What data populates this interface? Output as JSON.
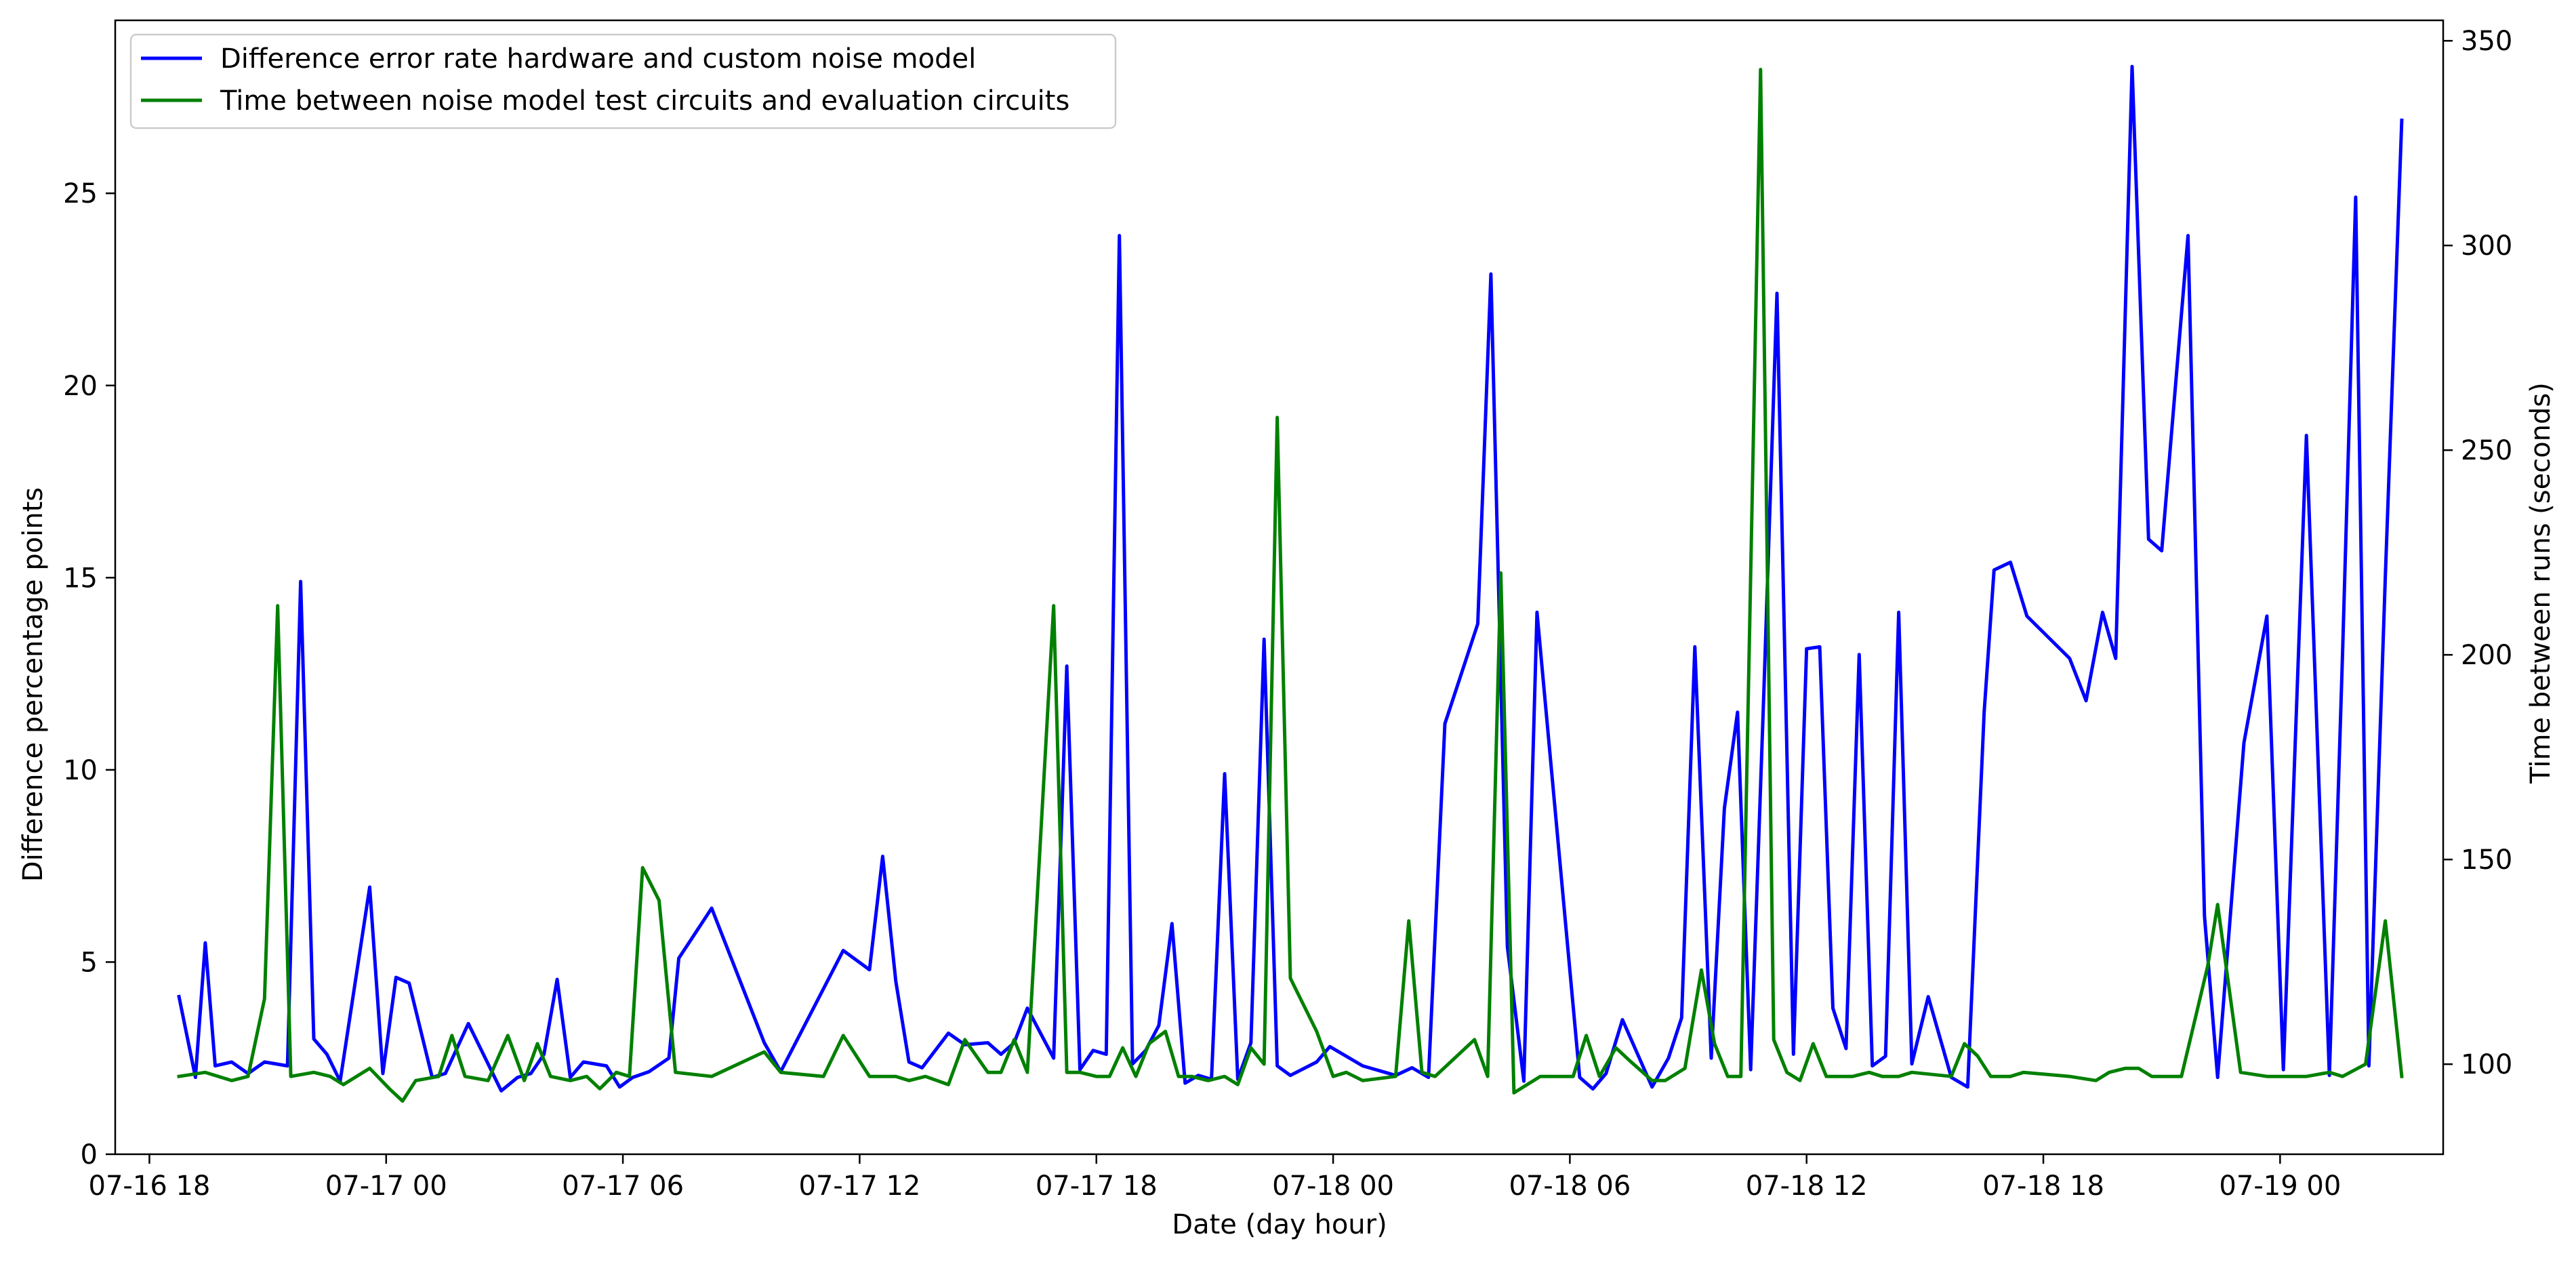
{
  "chart_data": {
    "type": "line",
    "title": "",
    "xlabel": "Date (day hour)",
    "ylabel": "Difference percentage points",
    "ylabel_right": "Time between runs (seconds)",
    "x_ticks": [
      "07-16 18",
      "07-17 00",
      "07-17 06",
      "07-17 12",
      "07-17 18",
      "07-18 00",
      "07-18 06",
      "07-18 12",
      "07-18 18",
      "07-19 00"
    ],
    "xlim": [
      "2024-07-16T17:08",
      "2024-07-19T04:08"
    ],
    "ylim": [
      0,
      29.5
    ],
    "ylim_right": [
      78,
      355
    ],
    "y_ticks": [
      0,
      5,
      10,
      15,
      20,
      25
    ],
    "y_ticks_right": [
      100,
      150,
      200,
      250,
      300,
      350
    ],
    "legend_position": "top-left",
    "grid": false,
    "series": [
      {
        "name": "Difference error rate hardware and custom noise model",
        "axis": "left",
        "color": "#0000ff",
        "points": [
          [
            "2024-07-16T18:45",
            4.1
          ],
          [
            "2024-07-16T19:10",
            2.0
          ],
          [
            "2024-07-16T19:25",
            5.5
          ],
          [
            "2024-07-16T19:40",
            2.3
          ],
          [
            "2024-07-16T20:05",
            2.4
          ],
          [
            "2024-07-16T20:30",
            2.1
          ],
          [
            "2024-07-16T20:55",
            2.4
          ],
          [
            "2024-07-16T21:30",
            2.3
          ],
          [
            "2024-07-16T21:50",
            14.9
          ],
          [
            "2024-07-16T22:10",
            3.0
          ],
          [
            "2024-07-16T22:30",
            2.6
          ],
          [
            "2024-07-16T22:50",
            1.9
          ],
          [
            "2024-07-16T23:35",
            6.95
          ],
          [
            "2024-07-16T23:55",
            2.1
          ],
          [
            "2024-07-17T00:15",
            4.6
          ],
          [
            "2024-07-17T00:35",
            4.45
          ],
          [
            "2024-07-17T01:10",
            2.0
          ],
          [
            "2024-07-17T01:30",
            2.1
          ],
          [
            "2024-07-17T02:05",
            3.4
          ],
          [
            "2024-07-17T02:55",
            1.65
          ],
          [
            "2024-07-17T03:20",
            2.0
          ],
          [
            "2024-07-17T03:40",
            2.1
          ],
          [
            "2024-07-17T04:00",
            2.6
          ],
          [
            "2024-07-17T04:20",
            4.55
          ],
          [
            "2024-07-17T04:40",
            2.0
          ],
          [
            "2024-07-17T05:00",
            2.4
          ],
          [
            "2024-07-17T05:35",
            2.3
          ],
          [
            "2024-07-17T05:55",
            1.75
          ],
          [
            "2024-07-17T06:15",
            2.0
          ],
          [
            "2024-07-17T06:40",
            2.15
          ],
          [
            "2024-07-17T07:10",
            2.5
          ],
          [
            "2024-07-17T07:25",
            5.1
          ],
          [
            "2024-07-17T08:15",
            6.4
          ],
          [
            "2024-07-17T09:35",
            2.9
          ],
          [
            "2024-07-17T10:00",
            2.15
          ],
          [
            "2024-07-17T11:35",
            5.3
          ],
          [
            "2024-07-17T12:15",
            4.8
          ],
          [
            "2024-07-17T12:35",
            7.75
          ],
          [
            "2024-07-17T12:55",
            4.5
          ],
          [
            "2024-07-17T13:15",
            2.4
          ],
          [
            "2024-07-17T13:35",
            2.25
          ],
          [
            "2024-07-17T14:15",
            3.15
          ],
          [
            "2024-07-17T14:40",
            2.85
          ],
          [
            "2024-07-17T15:15",
            2.9
          ],
          [
            "2024-07-17T15:35",
            2.6
          ],
          [
            "2024-07-17T15:55",
            2.9
          ],
          [
            "2024-07-17T16:15",
            3.8
          ],
          [
            "2024-07-17T16:55",
            2.5
          ],
          [
            "2024-07-17T17:15",
            12.7
          ],
          [
            "2024-07-17T17:35",
            2.2
          ],
          [
            "2024-07-17T17:55",
            2.7
          ],
          [
            "2024-07-17T18:15",
            2.6
          ],
          [
            "2024-07-17T18:35",
            23.9
          ],
          [
            "2024-07-17T18:55",
            2.35
          ],
          [
            "2024-07-17T19:15",
            2.7
          ],
          [
            "2024-07-17T19:35",
            3.35
          ],
          [
            "2024-07-17T19:55",
            6.0
          ],
          [
            "2024-07-17T20:15",
            1.85
          ],
          [
            "2024-07-17T20:35",
            2.05
          ],
          [
            "2024-07-17T20:55",
            1.95
          ],
          [
            "2024-07-17T21:15",
            9.9
          ],
          [
            "2024-07-17T21:35",
            1.95
          ],
          [
            "2024-07-17T21:55",
            2.9
          ],
          [
            "2024-07-17T22:15",
            13.4
          ],
          [
            "2024-07-17T22:35",
            2.3
          ],
          [
            "2024-07-17T22:55",
            2.05
          ],
          [
            "2024-07-17T23:35",
            2.4
          ],
          [
            "2024-07-17T23:55",
            2.8
          ],
          [
            "2024-07-18T00:45",
            2.3
          ],
          [
            "2024-07-18T01:35",
            2.05
          ],
          [
            "2024-07-18T02:00",
            2.25
          ],
          [
            "2024-07-18T02:25",
            2.0
          ],
          [
            "2024-07-18T02:50",
            11.2
          ],
          [
            "2024-07-18T03:40",
            13.8
          ],
          [
            "2024-07-18T04:00",
            22.9
          ],
          [
            "2024-07-18T04:25",
            5.4
          ],
          [
            "2024-07-18T04:50",
            1.9
          ],
          [
            "2024-07-18T05:10",
            14.1
          ],
          [
            "2024-07-18T06:15",
            2.0
          ],
          [
            "2024-07-18T06:35",
            1.7
          ],
          [
            "2024-07-18T06:55",
            2.1
          ],
          [
            "2024-07-18T07:20",
            3.5
          ],
          [
            "2024-07-18T08:05",
            1.75
          ],
          [
            "2024-07-18T08:30",
            2.5
          ],
          [
            "2024-07-18T08:50",
            3.55
          ],
          [
            "2024-07-18T09:10",
            13.2
          ],
          [
            "2024-07-18T09:35",
            2.5
          ],
          [
            "2024-07-18T09:55",
            9.0
          ],
          [
            "2024-07-18T10:15",
            11.5
          ],
          [
            "2024-07-18T10:35",
            2.2
          ],
          [
            "2024-07-18T10:55",
            12.0
          ],
          [
            "2024-07-18T11:15",
            22.4
          ],
          [
            "2024-07-18T11:40",
            2.6
          ],
          [
            "2024-07-18T12:00",
            13.15
          ],
          [
            "2024-07-18T12:20",
            13.2
          ],
          [
            "2024-07-18T12:40",
            3.8
          ],
          [
            "2024-07-18T13:00",
            2.75
          ],
          [
            "2024-07-18T13:20",
            13.0
          ],
          [
            "2024-07-18T13:40",
            2.3
          ],
          [
            "2024-07-18T14:00",
            2.55
          ],
          [
            "2024-07-18T14:20",
            14.1
          ],
          [
            "2024-07-18T14:40",
            2.35
          ],
          [
            "2024-07-18T15:05",
            4.1
          ],
          [
            "2024-07-18T15:40",
            2.0
          ],
          [
            "2024-07-18T16:05",
            1.75
          ],
          [
            "2024-07-18T16:30",
            11.5
          ],
          [
            "2024-07-18T16:45",
            15.2
          ],
          [
            "2024-07-18T17:10",
            15.4
          ],
          [
            "2024-07-18T17:35",
            14.0
          ],
          [
            "2024-07-18T18:40",
            12.9
          ],
          [
            "2024-07-18T19:05",
            11.8
          ],
          [
            "2024-07-18T19:30",
            14.1
          ],
          [
            "2024-07-18T19:50",
            12.9
          ],
          [
            "2024-07-18T20:15",
            28.3
          ],
          [
            "2024-07-18T20:40",
            16.0
          ],
          [
            "2024-07-18T21:00",
            15.7
          ],
          [
            "2024-07-18T21:40",
            23.9
          ],
          [
            "2024-07-18T22:05",
            6.2
          ],
          [
            "2024-07-18T22:25",
            2.0
          ],
          [
            "2024-07-18T23:05",
            10.7
          ],
          [
            "2024-07-18T23:40",
            14.0
          ],
          [
            "2024-07-19T00:05",
            2.2
          ],
          [
            "2024-07-19T00:40",
            18.7
          ],
          [
            "2024-07-19T01:15",
            2.05
          ],
          [
            "2024-07-19T01:35",
            13.0
          ],
          [
            "2024-07-19T01:55",
            24.9
          ],
          [
            "2024-07-19T02:15",
            2.3
          ],
          [
            "2024-07-19T02:40",
            15.0
          ],
          [
            "2024-07-19T03:05",
            26.9
          ]
        ]
      },
      {
        "name": "Time between noise model test circuits and evaluation circuits",
        "axis": "right",
        "color": "#008000",
        "points": [
          [
            "2024-07-16T18:45",
            97
          ],
          [
            "2024-07-16T19:25",
            98
          ],
          [
            "2024-07-16T20:05",
            96
          ],
          [
            "2024-07-16T20:30",
            97
          ],
          [
            "2024-07-16T20:55",
            116
          ],
          [
            "2024-07-16T21:15",
            212
          ],
          [
            "2024-07-16T21:35",
            97
          ],
          [
            "2024-07-16T22:10",
            98
          ],
          [
            "2024-07-16T22:35",
            97
          ],
          [
            "2024-07-16T22:55",
            95
          ],
          [
            "2024-07-16T23:35",
            99
          ],
          [
            "2024-07-17T00:05",
            94
          ],
          [
            "2024-07-17T00:25",
            91
          ],
          [
            "2024-07-17T00:45",
            96
          ],
          [
            "2024-07-17T01:20",
            97
          ],
          [
            "2024-07-17T01:40",
            107
          ],
          [
            "2024-07-17T02:00",
            97
          ],
          [
            "2024-07-17T02:35",
            96
          ],
          [
            "2024-07-17T03:05",
            107
          ],
          [
            "2024-07-17T03:30",
            96
          ],
          [
            "2024-07-17T03:50",
            105
          ],
          [
            "2024-07-17T04:10",
            97
          ],
          [
            "2024-07-17T04:40",
            96
          ],
          [
            "2024-07-17T05:05",
            97
          ],
          [
            "2024-07-17T05:25",
            94
          ],
          [
            "2024-07-17T05:50",
            98
          ],
          [
            "2024-07-17T06:10",
            97
          ],
          [
            "2024-07-17T06:30",
            148
          ],
          [
            "2024-07-17T06:55",
            140
          ],
          [
            "2024-07-17T07:20",
            98
          ],
          [
            "2024-07-17T08:15",
            97
          ],
          [
            "2024-07-17T09:35",
            103
          ],
          [
            "2024-07-17T10:00",
            98
          ],
          [
            "2024-07-17T11:05",
            97
          ],
          [
            "2024-07-17T11:35",
            107
          ],
          [
            "2024-07-17T12:15",
            97
          ],
          [
            "2024-07-17T12:55",
            97
          ],
          [
            "2024-07-17T13:15",
            96
          ],
          [
            "2024-07-17T13:40",
            97
          ],
          [
            "2024-07-17T14:15",
            95
          ],
          [
            "2024-07-17T14:40",
            106
          ],
          [
            "2024-07-17T15:15",
            98
          ],
          [
            "2024-07-17T15:35",
            98
          ],
          [
            "2024-07-17T15:55",
            106
          ],
          [
            "2024-07-17T16:15",
            98
          ],
          [
            "2024-07-17T16:55",
            212
          ],
          [
            "2024-07-17T17:15",
            98
          ],
          [
            "2024-07-17T17:35",
            98
          ],
          [
            "2024-07-17T18:00",
            97
          ],
          [
            "2024-07-17T18:20",
            97
          ],
          [
            "2024-07-17T18:40",
            104
          ],
          [
            "2024-07-17T19:00",
            97
          ],
          [
            "2024-07-17T19:20",
            105
          ],
          [
            "2024-07-17T19:45",
            108
          ],
          [
            "2024-07-17T20:05",
            97
          ],
          [
            "2024-07-17T20:25",
            97
          ],
          [
            "2024-07-17T20:50",
            96
          ],
          [
            "2024-07-17T21:15",
            97
          ],
          [
            "2024-07-17T21:35",
            95
          ],
          [
            "2024-07-17T21:55",
            104
          ],
          [
            "2024-07-17T22:15",
            100
          ],
          [
            "2024-07-17T22:35",
            258
          ],
          [
            "2024-07-17T22:55",
            121
          ],
          [
            "2024-07-17T23:35",
            108
          ],
          [
            "2024-07-18T00:00",
            97
          ],
          [
            "2024-07-18T00:20",
            98
          ],
          [
            "2024-07-18T00:45",
            96
          ],
          [
            "2024-07-18T01:35",
            97
          ],
          [
            "2024-07-18T01:55",
            135
          ],
          [
            "2024-07-18T02:15",
            98
          ],
          [
            "2024-07-18T02:35",
            97
          ],
          [
            "2024-07-18T03:35",
            106
          ],
          [
            "2024-07-18T03:55",
            97
          ],
          [
            "2024-07-18T04:15",
            220
          ],
          [
            "2024-07-18T04:35",
            93
          ],
          [
            "2024-07-18T05:15",
            97
          ],
          [
            "2024-07-18T06:05",
            97
          ],
          [
            "2024-07-18T06:25",
            107
          ],
          [
            "2024-07-18T06:45",
            97
          ],
          [
            "2024-07-18T07:10",
            104
          ],
          [
            "2024-07-18T07:30",
            101
          ],
          [
            "2024-07-18T08:05",
            96
          ],
          [
            "2024-07-18T08:25",
            96
          ],
          [
            "2024-07-18T08:55",
            99
          ],
          [
            "2024-07-18T09:20",
            123
          ],
          [
            "2024-07-18T09:40",
            105
          ],
          [
            "2024-07-18T10:00",
            97
          ],
          [
            "2024-07-18T10:20",
            97
          ],
          [
            "2024-07-18T10:50",
            343
          ],
          [
            "2024-07-18T11:10",
            106
          ],
          [
            "2024-07-18T11:30",
            98
          ],
          [
            "2024-07-18T11:50",
            96
          ],
          [
            "2024-07-18T12:10",
            105
          ],
          [
            "2024-07-18T12:30",
            97
          ],
          [
            "2024-07-18T12:50",
            97
          ],
          [
            "2024-07-18T13:10",
            97
          ],
          [
            "2024-07-18T13:35",
            98
          ],
          [
            "2024-07-18T13:55",
            97
          ],
          [
            "2024-07-18T14:20",
            97
          ],
          [
            "2024-07-18T14:40",
            98
          ],
          [
            "2024-07-18T15:40",
            97
          ],
          [
            "2024-07-18T16:00",
            105
          ],
          [
            "2024-07-18T16:20",
            102
          ],
          [
            "2024-07-18T16:40",
            97
          ],
          [
            "2024-07-18T17:10",
            97
          ],
          [
            "2024-07-18T17:30",
            98
          ],
          [
            "2024-07-18T18:40",
            97
          ],
          [
            "2024-07-18T19:20",
            96
          ],
          [
            "2024-07-18T19:40",
            98
          ],
          [
            "2024-07-18T20:05",
            99
          ],
          [
            "2024-07-18T20:25",
            99
          ],
          [
            "2024-07-18T20:45",
            97
          ],
          [
            "2024-07-18T21:30",
            97
          ],
          [
            "2024-07-18T22:10",
            124
          ],
          [
            "2024-07-18T22:25",
            139
          ],
          [
            "2024-07-18T23:00",
            98
          ],
          [
            "2024-07-18T23:40",
            97
          ],
          [
            "2024-07-19T00:05",
            97
          ],
          [
            "2024-07-19T00:40",
            97
          ],
          [
            "2024-07-19T01:15",
            98
          ],
          [
            "2024-07-19T01:35",
            97
          ],
          [
            "2024-07-19T02:10",
            100
          ],
          [
            "2024-07-19T02:40",
            135
          ],
          [
            "2024-07-19T03:05",
            97
          ]
        ]
      }
    ]
  }
}
